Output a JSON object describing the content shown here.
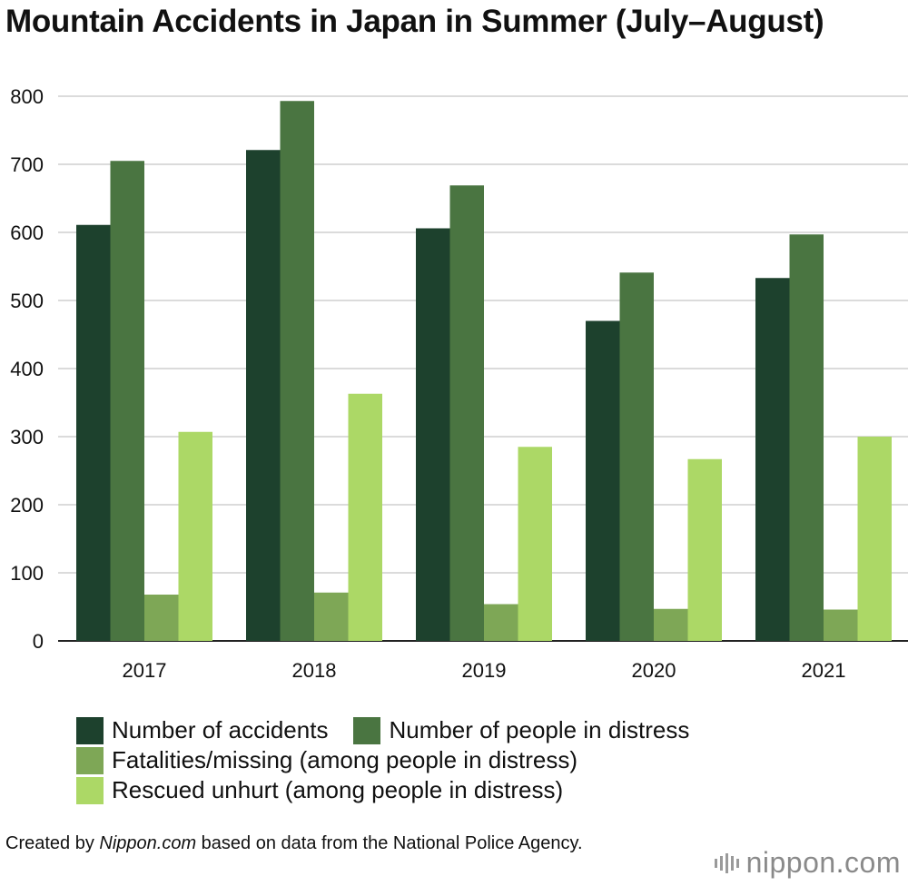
{
  "title": "Mountain Accidents in Japan in Summer (July–August)",
  "chart_data": {
    "type": "bar",
    "title": "Mountain Accidents in Japan in Summer (July–August)",
    "categories": [
      "2017",
      "2018",
      "2019",
      "2020",
      "2021"
    ],
    "series": [
      {
        "name": "Number of accidents",
        "color": "#1d412d",
        "values": [
          611,
          721,
          606,
          470,
          533
        ]
      },
      {
        "name": "Number of people in distress",
        "color": "#4a7541",
        "values": [
          705,
          793,
          669,
          541,
          597
        ]
      },
      {
        "name": "Fatalities/missing (among people in distress)",
        "color": "#7ea756",
        "values": [
          68,
          71,
          54,
          47,
          46
        ]
      },
      {
        "name": "Rescued unhurt (among people in distress)",
        "color": "#acd866",
        "values": [
          307,
          363,
          285,
          267,
          300
        ]
      }
    ],
    "ylim": [
      0,
      800
    ],
    "yticks": [
      0,
      100,
      200,
      300,
      400,
      500,
      600,
      700,
      800
    ],
    "grid": true,
    "legend": "bottom"
  },
  "credit": {
    "prefix": "Created by ",
    "source": "Nippon.com",
    "suffix": " based on data from the National Police Agency."
  },
  "logo": {
    "word": "nippon",
    "dot": ".",
    "tld": "com"
  }
}
